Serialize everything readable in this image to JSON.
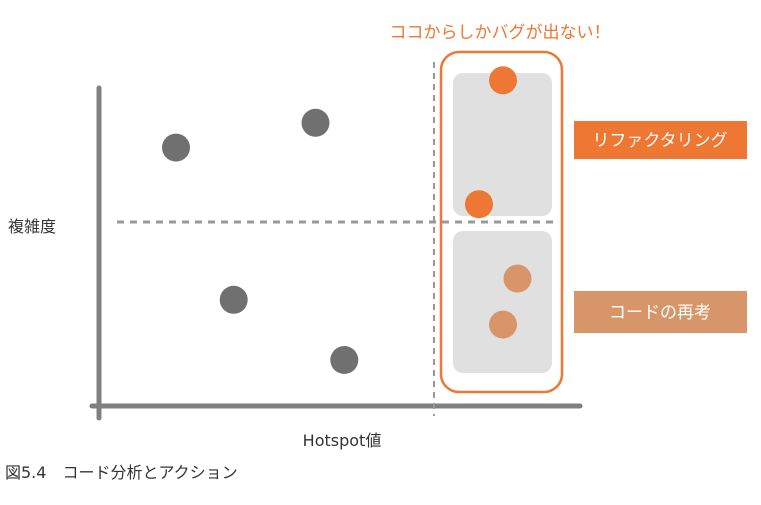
{
  "callout": "ココからしかバグが出ない！",
  "labels": {
    "ylabel": "複雑度",
    "xlabel": "Hotspot値",
    "caption": "図5.4　コード分析とアクション"
  },
  "actions": {
    "refactor": "リファクタリング",
    "reconsider": "コードの再考"
  },
  "colors": {
    "axis": "#808080",
    "point": "#707070",
    "accent": "#ee7733",
    "accent_light": "#d9956a",
    "panel": "#e0e0e0",
    "text": "#333333"
  },
  "points": {
    "normal": [
      {
        "x": 0.16,
        "y": 0.73
      },
      {
        "x": 0.45,
        "y": 0.8
      },
      {
        "x": 0.28,
        "y": 0.3
      },
      {
        "x": 0.51,
        "y": 0.13
      }
    ],
    "hotspot_refactor": [
      {
        "x": 0.84,
        "y": 0.92
      },
      {
        "x": 0.79,
        "y": 0.57
      }
    ],
    "hotspot_reconsider": [
      {
        "x": 0.87,
        "y": 0.36
      },
      {
        "x": 0.84,
        "y": 0.23
      }
    ]
  }
}
